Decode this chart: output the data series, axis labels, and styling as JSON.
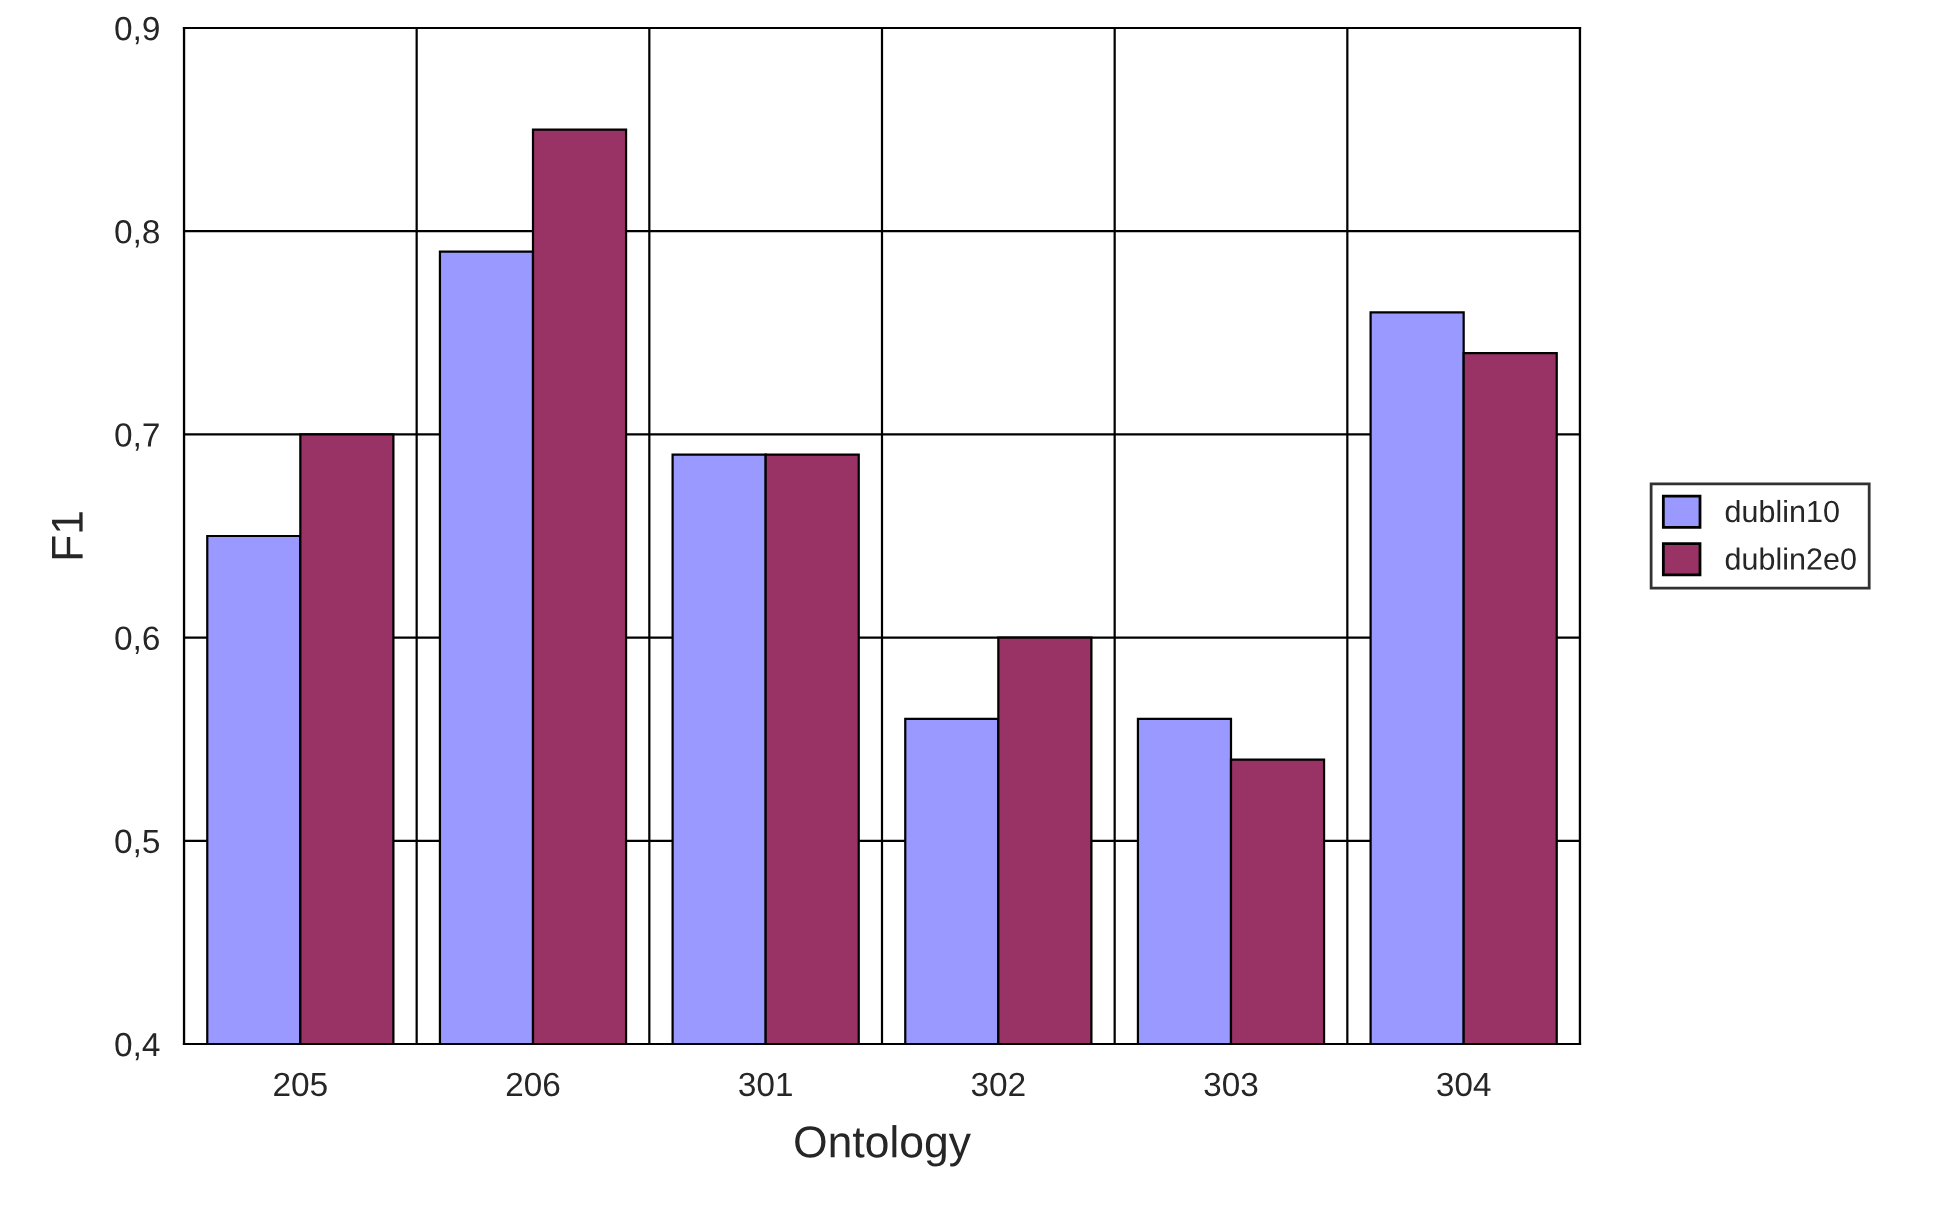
{
  "chart_data": {
    "type": "bar",
    "xlabel": "Ontology",
    "ylabel": "F1",
    "categories": [
      "205",
      "206",
      "301",
      "302",
      "303",
      "304"
    ],
    "series": [
      {
        "name": "dublin10",
        "color": "#9999ff",
        "values": [
          0.65,
          0.79,
          0.69,
          0.56,
          0.56,
          0.76
        ]
      },
      {
        "name": "dublin2e0",
        "color": "#993366",
        "values": [
          0.7,
          0.85,
          0.69,
          0.6,
          0.54,
          0.74
        ]
      }
    ],
    "ylim": [
      0.4,
      0.9
    ],
    "yticks": [
      {
        "value": 0.4,
        "label": "0,4"
      },
      {
        "value": 0.5,
        "label": "0,5"
      },
      {
        "value": 0.6,
        "label": "0,6"
      },
      {
        "value": 0.7,
        "label": "0,7"
      },
      {
        "value": 0.8,
        "label": "0,8"
      },
      {
        "value": 0.9,
        "label": "0,9"
      }
    ],
    "grid": true,
    "legend": "right"
  }
}
